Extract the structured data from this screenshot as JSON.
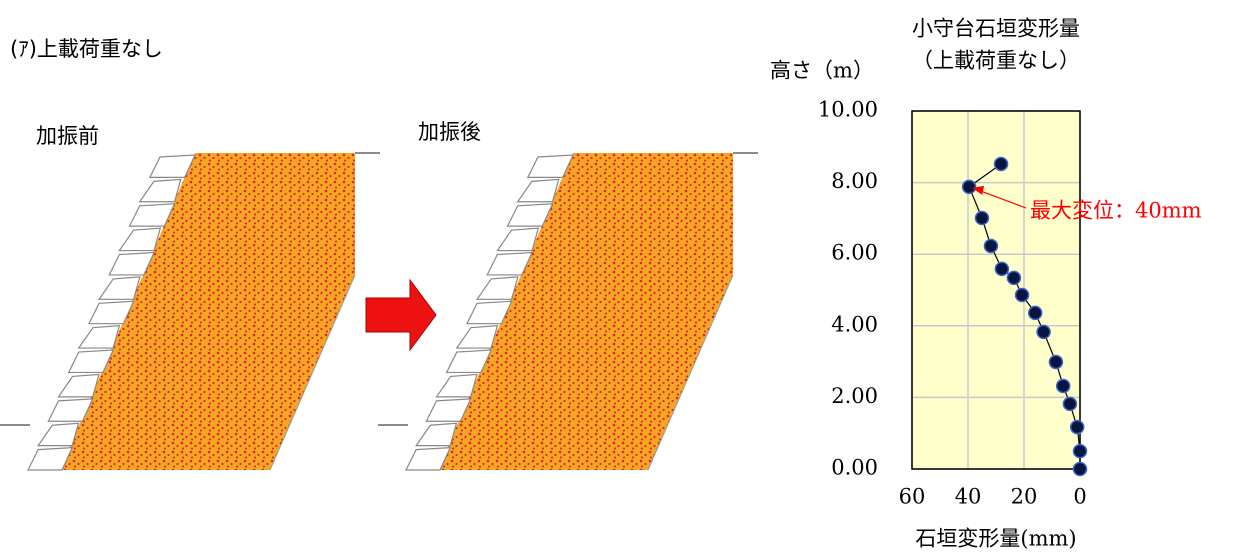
{
  "heading": "(ｱ)上載荷重なし",
  "panels": [
    {
      "label": "加振前"
    },
    {
      "label": "加振後"
    }
  ],
  "chart_data": {
    "type": "line",
    "title": "小守台石垣変形量",
    "subtitle": "（上載荷重なし）",
    "y_label": "高さ（m）",
    "x_label": "石垣変形量(mm)",
    "x": [
      0,
      0,
      1,
      3.6,
      6,
      8.6,
      13,
      16,
      20.7,
      23.6,
      27.9,
      31.8,
      35,
      39.6,
      28.2
    ],
    "values": [
      0,
      0.5,
      1.17,
      1.82,
      2.32,
      2.99,
      3.83,
      4.36,
      4.86,
      5.34,
      5.59,
      6.23,
      7.01,
      7.88,
      8.52
    ],
    "color": "#0a1440",
    "line_color": "#000000",
    "background": "#ffffcc",
    "xlim": [
      60,
      0
    ],
    "xticks": [
      60,
      40,
      20,
      0
    ],
    "ylim": [
      0,
      10
    ],
    "yticks": [
      {
        "value": 0,
        "label": "0.00"
      },
      {
        "value": 2,
        "label": "2.00"
      },
      {
        "value": 4,
        "label": "4.00"
      },
      {
        "value": 6,
        "label": "6.00"
      },
      {
        "value": 8,
        "label": "8.00"
      },
      {
        "value": 10,
        "label": "10.00"
      }
    ],
    "grid": true,
    "annotation": {
      "text": "最大変位：40mm",
      "color": "#ff0000"
    }
  }
}
